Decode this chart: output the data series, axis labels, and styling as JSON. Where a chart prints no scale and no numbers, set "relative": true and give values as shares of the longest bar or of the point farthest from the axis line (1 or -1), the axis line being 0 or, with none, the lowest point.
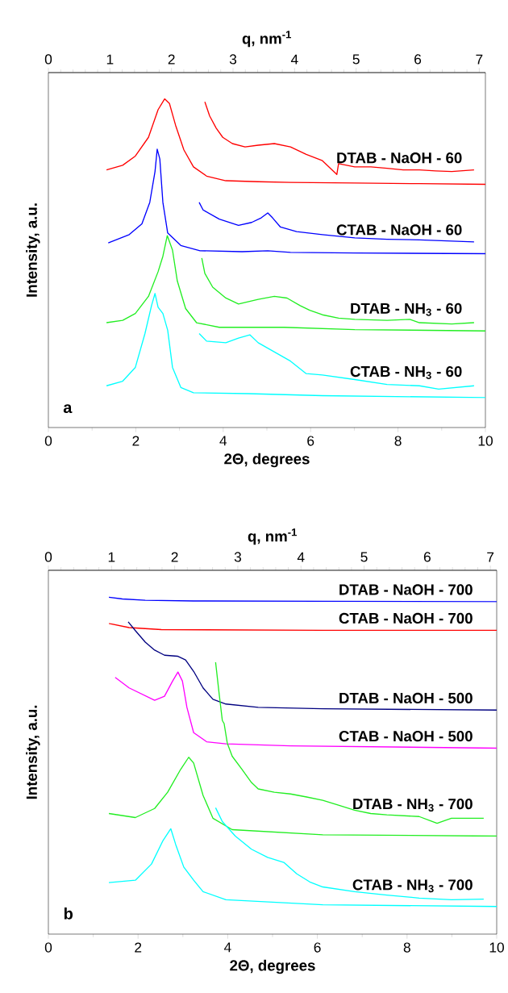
{
  "chart_data": [
    {
      "type": "line",
      "relative": true,
      "xlabel": "2Θ, degrees",
      "ylabel": "Intensity, a.u.",
      "x2label": "q, nm$^{-1}$",
      "xlim": [
        0,
        10
      ],
      "xticks": [
        0,
        2,
        4,
        6,
        8,
        10
      ],
      "x2lim": [
        0,
        7.1
      ],
      "x2ticks": [
        0,
        1,
        2,
        3,
        4,
        5,
        6,
        7
      ],
      "annotations": [
        "a"
      ],
      "series": [
        {
          "name": "DTAB - NaOH - 60",
          "color": "#ff0000",
          "x": [
            1.33,
            1.7,
            1.99,
            2.29,
            2.51,
            2.66,
            2.77,
            2.91,
            3.1,
            3.32,
            3.62,
            4.06,
            4.8,
            5.54,
            7.01,
            8.49,
            10.0
          ],
          "values": [
            0.784,
            0.798,
            0.826,
            0.883,
            0.967,
            1.0,
            0.986,
            0.92,
            0.845,
            0.793,
            0.765,
            0.751,
            0.748,
            0.746,
            0.744,
            0.742,
            0.74
          ]
        },
        {
          "color": "#ff0000",
          "x": [
            3.58,
            3.69,
            3.84,
            3.99,
            4.21,
            4.5,
            4.8,
            5.17,
            5.54,
            5.9,
            6.27,
            6.6,
            6.64,
            7.01,
            7.38,
            7.75,
            8.12,
            8.49,
            8.86,
            9.23,
            9.74
          ],
          "values": [
            0.991,
            0.948,
            0.911,
            0.883,
            0.864,
            0.854,
            0.859,
            0.864,
            0.854,
            0.831,
            0.812,
            0.77,
            0.803,
            0.793,
            0.793,
            0.789,
            0.784,
            0.784,
            0.781,
            0.779,
            0.784
          ]
        },
        {
          "name": "CTAB - NaOH - 60",
          "color": "#0000ff",
          "x": [
            1.37,
            1.85,
            2.14,
            2.32,
            2.44,
            2.49,
            2.55,
            2.62,
            2.73,
            3.03,
            3.47,
            4.43,
            5.02,
            5.54,
            7.01,
            10.0
          ],
          "values": [
            0.562,
            0.587,
            0.62,
            0.685,
            0.779,
            0.847,
            0.817,
            0.685,
            0.592,
            0.554,
            0.538,
            0.535,
            0.538,
            0.533,
            0.531,
            0.529
          ]
        },
        {
          "color": "#0000ff",
          "x": [
            3.45,
            3.54,
            3.91,
            4.35,
            4.65,
            4.87,
            5.02,
            5.13,
            5.31,
            5.68,
            6.27,
            7.01,
            7.75,
            8.49,
            9.74
          ],
          "values": [
            0.685,
            0.662,
            0.634,
            0.615,
            0.624,
            0.638,
            0.653,
            0.638,
            0.61,
            0.596,
            0.587,
            0.577,
            0.573,
            0.571,
            0.565
          ]
        },
        {
          "name": "DTAB - NH$_{3}$ - 60",
          "color": "#22ee22",
          "x": [
            1.33,
            1.7,
            1.99,
            2.29,
            2.51,
            2.62,
            2.72,
            2.84,
            2.95,
            3.14,
            3.39,
            3.91,
            5.39,
            7.01,
            10.0
          ],
          "values": [
            0.319,
            0.326,
            0.347,
            0.399,
            0.474,
            0.521,
            0.584,
            0.54,
            0.446,
            0.362,
            0.319,
            0.305,
            0.305,
            0.298,
            0.294
          ]
        },
        {
          "color": "#22ee22",
          "x": [
            3.51,
            3.58,
            3.76,
            4.06,
            4.35,
            4.8,
            5.17,
            5.46,
            5.76,
            5.98,
            6.27,
            6.64,
            7.01,
            7.75,
            8.27,
            8.49,
            9.23,
            9.74
          ],
          "values": [
            0.516,
            0.469,
            0.427,
            0.394,
            0.376,
            0.39,
            0.399,
            0.394,
            0.371,
            0.357,
            0.343,
            0.333,
            0.329,
            0.326,
            0.329,
            0.319,
            0.315,
            0.319
          ]
        },
        {
          "name": "CTAB - NH$_{3}$ - 60",
          "color": "#00ffff",
          "x": [
            1.33,
            1.7,
            1.99,
            2.21,
            2.36,
            2.44,
            2.51,
            2.62,
            2.73,
            2.84,
            3.03,
            3.32,
            4.58,
            6.27,
            10.0
          ],
          "values": [
            0.127,
            0.141,
            0.183,
            0.286,
            0.371,
            0.408,
            0.366,
            0.347,
            0.296,
            0.183,
            0.122,
            0.106,
            0.103,
            0.097,
            0.091
          ]
        },
        {
          "color": "#00ffff",
          "x": [
            3.45,
            3.62,
            4.06,
            4.35,
            4.61,
            4.8,
            5.17,
            5.54,
            5.9,
            6.27,
            7.01,
            7.75,
            8.49,
            8.93,
            9.74
          ],
          "values": [
            0.286,
            0.263,
            0.258,
            0.272,
            0.282,
            0.258,
            0.23,
            0.202,
            0.164,
            0.16,
            0.146,
            0.131,
            0.127,
            0.117,
            0.127
          ]
        }
      ]
    },
    {
      "type": "line",
      "relative": true,
      "xlabel": "2Θ, degrees",
      "ylabel": "Intensity, a.u.",
      "x2label": "q, nm$^{-1}$",
      "xlim": [
        0,
        10
      ],
      "xticks": [
        0,
        2,
        4,
        6,
        8,
        10
      ],
      "x2lim": [
        0,
        7.1
      ],
      "x2ticks": [
        0,
        1,
        2,
        3,
        4,
        5,
        6,
        7
      ],
      "annotations": [
        "b"
      ],
      "series": [
        {
          "name": "DTAB - NaOH - 700",
          "color": "#0000ff",
          "x": [
            1.35,
            1.65,
            2.16,
            3.24,
            6.12,
            10.0
          ],
          "values": [
            1.0,
            0.995,
            0.991,
            0.989,
            0.988,
            0.987
          ]
        },
        {
          "name": "CTAB - NaOH - 700",
          "color": "#ff0000",
          "x": [
            1.35,
            1.8,
            2.52,
            6.12,
            10.0
          ],
          "values": [
            0.922,
            0.91,
            0.904,
            0.902,
            0.902
          ]
        },
        {
          "name": "DTAB - NaOH - 500",
          "color": "#000080",
          "x": [
            1.78,
            1.94,
            2.16,
            2.37,
            2.59,
            2.88,
            3.06,
            3.24,
            3.45,
            3.67,
            3.96,
            4.68,
            6.12,
            10.0
          ],
          "values": [
            0.927,
            0.901,
            0.867,
            0.843,
            0.828,
            0.825,
            0.814,
            0.78,
            0.731,
            0.697,
            0.683,
            0.673,
            0.669,
            0.665
          ]
        },
        {
          "name": "CTAB - NaOH - 500",
          "color": "#ff00ff",
          "x": [
            1.49,
            1.8,
            2.37,
            2.59,
            2.77,
            2.89,
            2.99,
            3.09,
            3.24,
            3.53,
            3.96,
            5.4,
            10.0
          ],
          "values": [
            0.762,
            0.731,
            0.694,
            0.706,
            0.751,
            0.778,
            0.751,
            0.673,
            0.598,
            0.571,
            0.565,
            0.559,
            0.552
          ]
        },
        {
          "name": "DTAB - NH$_{3}$ - 700",
          "color": "#22ee22",
          "x": [
            1.35,
            1.94,
            2.37,
            2.66,
            2.95,
            3.13,
            3.24,
            3.45,
            3.67,
            4.1,
            6.12,
            10.0
          ],
          "values": [
            0.358,
            0.346,
            0.373,
            0.421,
            0.489,
            0.525,
            0.508,
            0.412,
            0.344,
            0.31,
            0.295,
            0.291
          ]
        },
        {
          "color": "#22ee22",
          "x": [
            3.73,
            3.81,
            3.88,
            3.92,
            3.99,
            4.1,
            4.32,
            4.53,
            4.68,
            5.04,
            5.4,
            5.76,
            6.12,
            6.47,
            6.83,
            7.19,
            7.55,
            8.27,
            8.67,
            8.99,
            9.71
          ],
          "values": [
            0.807,
            0.712,
            0.634,
            0.625,
            0.567,
            0.528,
            0.489,
            0.45,
            0.431,
            0.421,
            0.416,
            0.407,
            0.397,
            0.383,
            0.368,
            0.358,
            0.354,
            0.349,
            0.329,
            0.344,
            0.344
          ]
        },
        {
          "name": "CTAB - NH$_{3}$ - 700",
          "color": "#00ffff",
          "x": [
            1.35,
            1.94,
            2.3,
            2.55,
            2.73,
            2.84,
            3.02,
            3.24,
            3.45,
            3.96,
            6.12,
            10.0
          ],
          "values": [
            0.153,
            0.16,
            0.208,
            0.276,
            0.313,
            0.266,
            0.199,
            0.16,
            0.126,
            0.102,
            0.087,
            0.082
          ]
        },
        {
          "color": "#00ffff",
          "x": [
            3.73,
            3.88,
            4.17,
            4.53,
            4.89,
            5.25,
            5.54,
            5.83,
            6.12,
            6.83,
            7.55,
            8.27,
            8.99,
            9.71
          ],
          "values": [
            0.375,
            0.334,
            0.291,
            0.252,
            0.228,
            0.213,
            0.179,
            0.155,
            0.14,
            0.126,
            0.116,
            0.107,
            0.102,
            0.104
          ]
        }
      ]
    }
  ]
}
